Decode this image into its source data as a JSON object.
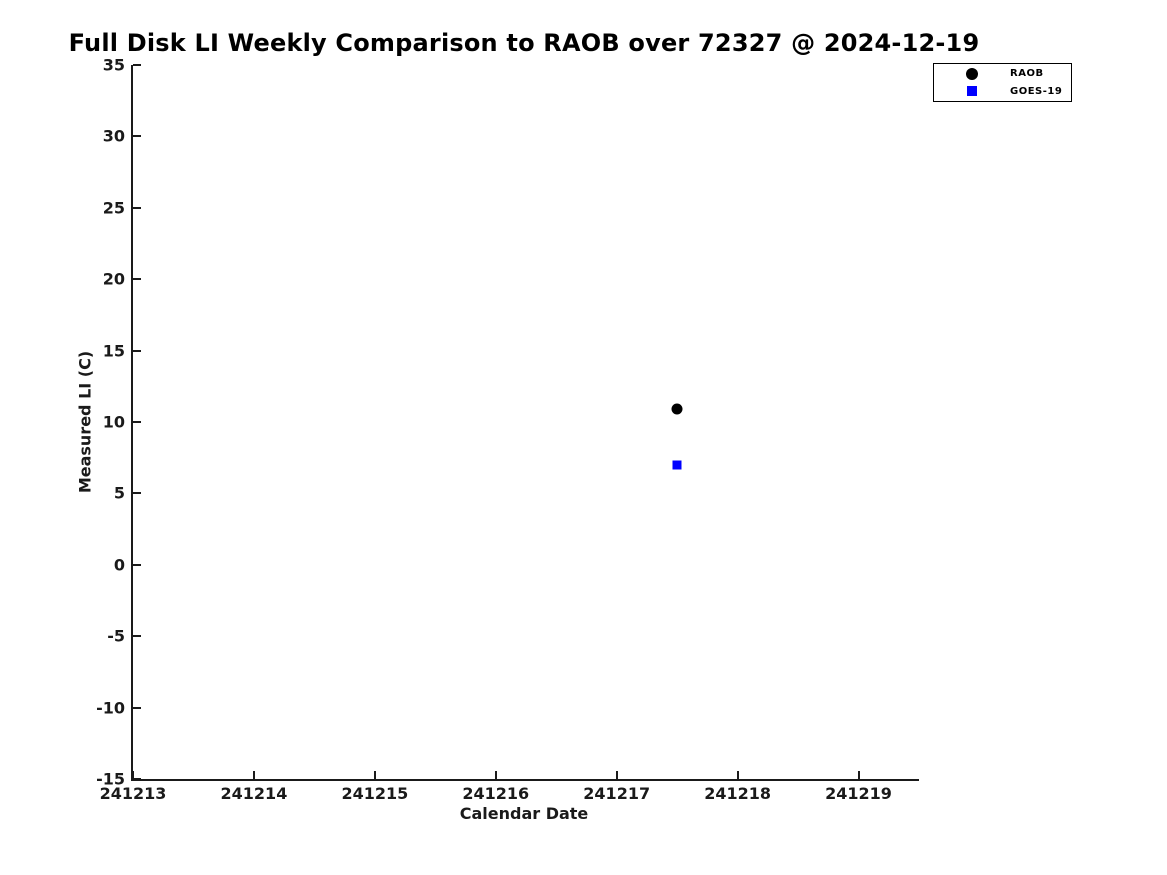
{
  "chart_data": {
    "type": "scatter",
    "title": "Full Disk LI Weekly Comparison to RAOB over 72327 @ 2024-12-19",
    "xlabel": "Calendar Date",
    "ylabel": "Measured LI (C)",
    "xlim": [
      241213,
      241219.5
    ],
    "ylim": [
      -15,
      35
    ],
    "x_ticks": [
      241213,
      241214,
      241215,
      241216,
      241217,
      241218,
      241219
    ],
    "y_ticks": [
      -15,
      -10,
      -5,
      0,
      5,
      10,
      15,
      20,
      25,
      30,
      35
    ],
    "grid": false,
    "legend_position": "outside-top-right",
    "series": [
      {
        "name": "RAOB",
        "marker": "circle",
        "color": "#000000",
        "marker_size": 11,
        "legend_marker_size": 12,
        "points": [
          {
            "x": 241217.5,
            "y": 10.9
          }
        ]
      },
      {
        "name": "GOES-19",
        "marker": "square",
        "color": "#0000ff",
        "marker_size": 9,
        "legend_marker_size": 10,
        "points": [
          {
            "x": 241217.5,
            "y": 7.0
          }
        ]
      }
    ]
  }
}
